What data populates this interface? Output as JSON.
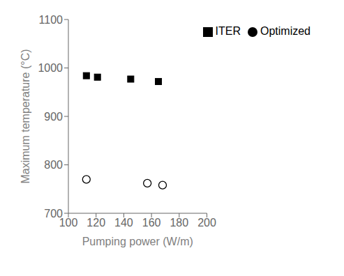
{
  "chart_data": {
    "type": "scatter",
    "xlabel": "Pumping power (W/m)",
    "ylabel": "Maximum temperature (°C)",
    "xlim": [
      100,
      200
    ],
    "ylim": [
      700,
      1100
    ],
    "xticks": [
      100,
      120,
      140,
      160,
      180,
      200
    ],
    "yticks": [
      700,
      800,
      900,
      1000,
      1100
    ],
    "grid": false,
    "legend": "upper right",
    "series": [
      {
        "name": "ITER",
        "color": "#000000",
        "marker": "square",
        "x": [
          113,
          121,
          145,
          165
        ],
        "values": [
          984,
          981,
          977,
          972
        ]
      },
      {
        "name": "Optimized",
        "color": "#000000",
        "marker": "circle",
        "x": [
          113,
          157,
          168
        ],
        "values": [
          770,
          762,
          758
        ]
      }
    ]
  }
}
